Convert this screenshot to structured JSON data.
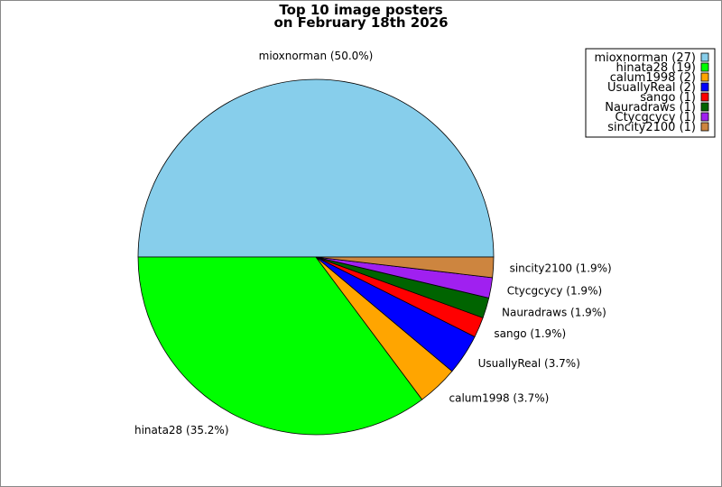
{
  "chart_data": {
    "type": "pie",
    "title_lines": [
      "Top 10 image posters",
      "on February 18th 2026"
    ],
    "slices": [
      {
        "name": "mioxnorman",
        "value": 27,
        "percent_label": "mioxnorman (50.0%)",
        "legend_label": "mioxnorman (27)",
        "color": "#87CEEB"
      },
      {
        "name": "hinata28",
        "value": 19,
        "percent_label": "hinata28 (35.2%)",
        "legend_label": "hinata28 (19)",
        "color": "#00FF00"
      },
      {
        "name": "calum1998",
        "value": 2,
        "percent_label": "calum1998 (3.7%)",
        "legend_label": "calum1998 (2)",
        "color": "#FFA500"
      },
      {
        "name": "UsuallyReal",
        "value": 2,
        "percent_label": "UsuallyReal (3.7%)",
        "legend_label": "UsuallyReal (2)",
        "color": "#0000FF"
      },
      {
        "name": "sango",
        "value": 1,
        "percent_label": "sango (1.9%)",
        "legend_label": "sango (1)",
        "color": "#FF0000"
      },
      {
        "name": "Nauradraws",
        "value": 1,
        "percent_label": "Nauradraws (1.9%)",
        "legend_label": "Nauradraws (1)",
        "color": "#006400"
      },
      {
        "name": "Ctycgcycy",
        "value": 1,
        "percent_label": "Ctycgcycy (1.9%)",
        "legend_label": "Ctycgcycy (1)",
        "color": "#A020F0"
      },
      {
        "name": "sincity2100",
        "value": 1,
        "percent_label": "sincity2100 (1.9%)",
        "legend_label": "sincity2100 (1)",
        "color": "#CD853F"
      }
    ],
    "legend_position": "top-right"
  }
}
